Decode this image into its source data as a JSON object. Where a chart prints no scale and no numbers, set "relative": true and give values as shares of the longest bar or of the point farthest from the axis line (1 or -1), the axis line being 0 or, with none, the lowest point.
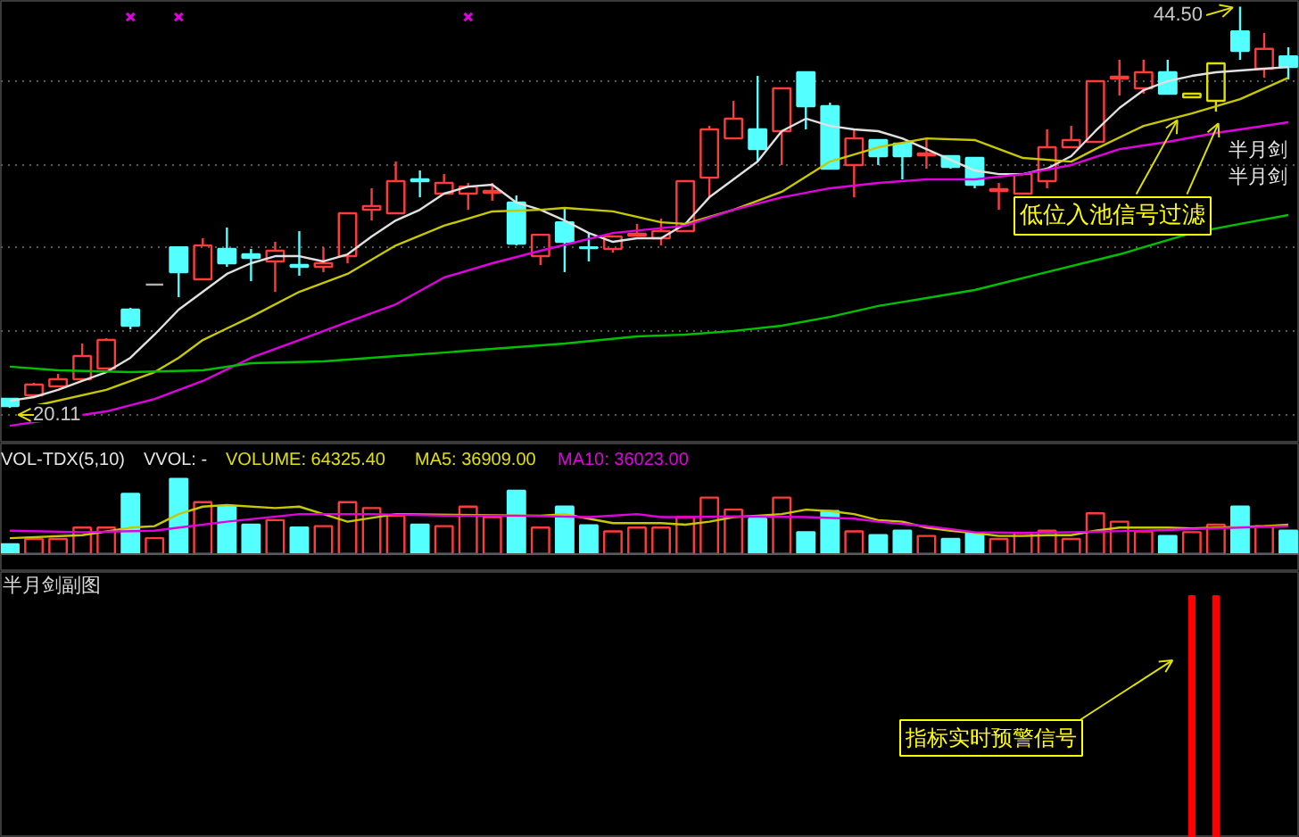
{
  "chart_data": [
    {
      "type": "candlestick",
      "categories": [
        null,
        null,
        null,
        null,
        null,
        null,
        null,
        null,
        null,
        null,
        null,
        null,
        null,
        null,
        null,
        null,
        null,
        null,
        null,
        null,
        null,
        null,
        null,
        null,
        null,
        null,
        null,
        null,
        null,
        null,
        null,
        null,
        null,
        null,
        null,
        null,
        null,
        null,
        null,
        null,
        null,
        null,
        null,
        null,
        null,
        null,
        null,
        null,
        null,
        null,
        null,
        null,
        null,
        null
      ],
      "ohlc": [
        [
          20.65,
          20.65,
          20.11,
          20.22
        ],
        [
          20.87,
          21.63,
          20.82,
          21.52
        ],
        [
          21.41,
          22.17,
          21.41,
          21.85
        ],
        [
          21.85,
          24.02,
          21.85,
          23.26
        ],
        [
          22.5,
          24.34,
          22.5,
          24.23
        ],
        [
          26.08,
          26.19,
          24.88,
          25.1
        ],
        [
          27.6,
          27.6,
          27.6,
          27.6
        ],
        [
          29.87,
          29.87,
          26.84,
          28.36
        ],
        [
          27.92,
          30.42,
          27.92,
          29.98
        ],
        [
          29.77,
          31.07,
          28.68,
          28.9
        ],
        [
          29.44,
          29.77,
          27.81,
          29.22
        ],
        [
          29.01,
          30.2,
          27.16,
          29.66
        ],
        [
          28.79,
          30.85,
          28.14,
          28.68
        ],
        [
          28.68,
          29.87,
          28.36,
          28.9
        ],
        [
          29.33,
          31.94,
          28.9,
          31.94
        ],
        [
          32.15,
          33.46,
          31.5,
          32.37
        ],
        [
          31.94,
          35.08,
          31.94,
          33.89
        ],
        [
          34.0,
          34.54,
          32.91,
          33.89
        ],
        [
          33.13,
          34.32,
          33.13,
          33.78
        ],
        [
          33.13,
          33.78,
          32.15,
          33.56
        ],
        [
          33.18,
          33.78,
          32.7,
          33.29
        ],
        [
          32.59,
          33.02,
          29.98,
          30.09
        ],
        [
          29.33,
          30.63,
          28.79,
          30.63
        ],
        [
          31.39,
          32.26,
          28.36,
          30.2
        ],
        [
          29.87,
          30.74,
          29.01,
          29.82
        ],
        [
          29.77,
          30.53,
          29.55,
          30.53
        ],
        [
          30.58,
          31.29,
          30.58,
          30.69
        ],
        [
          30.42,
          31.61,
          29.98,
          30.85
        ],
        [
          30.85,
          33.89,
          30.85,
          33.89
        ],
        [
          34.1,
          37.25,
          32.91,
          37.04
        ],
        [
          36.49,
          38.77,
          36.49,
          37.69
        ],
        [
          37.04,
          40.29,
          35.08,
          35.84
        ],
        [
          36.93,
          39.53,
          34.87,
          39.53
        ],
        [
          40.51,
          40.51,
          37.04,
          38.45
        ],
        [
          38.45,
          38.66,
          34.65,
          34.65
        ],
        [
          34.87,
          37.04,
          32.91,
          36.49
        ],
        [
          36.39,
          36.39,
          34.87,
          35.41
        ],
        [
          36.17,
          36.17,
          34.0,
          35.41
        ],
        [
          35.46,
          36.49,
          34.65,
          35.57
        ],
        [
          35.41,
          35.41,
          34.65,
          34.76
        ],
        [
          35.3,
          35.3,
          33.46,
          33.67
        ],
        [
          33.29,
          33.78,
          32.15,
          33.4
        ],
        [
          33.13,
          34.32,
          33.07,
          34.32
        ],
        [
          33.89,
          37.04,
          33.46,
          35.95
        ],
        [
          35.95,
          37.25,
          35.95,
          36.39
        ],
        [
          36.28,
          39.97,
          36.28,
          39.97
        ],
        [
          40.13,
          41.27,
          39.1,
          40.24
        ],
        [
          39.53,
          41.27,
          39.21,
          40.51
        ],
        [
          40.51,
          41.27,
          39.21,
          39.21
        ],
        [
          38.99,
          39.21,
          38.99,
          39.21
        ],
        [
          38.77,
          41.05,
          38.12,
          41.05
        ],
        [
          43.0,
          44.5,
          41.27,
          41.81
        ],
        [
          40.73,
          42.9,
          40.18,
          41.93
        ],
        [
          41.48,
          42.03,
          40.07,
          40.83
        ]
      ],
      "colors": [
        "#54ffff",
        "#ff3c3c",
        "#ff3c3c",
        "#ff3c3c",
        "#ff3c3c",
        "#54ffff",
        "#b0b0b0",
        "#54ffff",
        "#ff3c3c",
        "#54ffff",
        "#54ffff",
        "#ff3c3c",
        "#54ffff",
        "#ff3c3c",
        "#ff3c3c",
        "#ff3c3c",
        "#ff3c3c",
        "#54ffff",
        "#ff3c3c",
        "#ff3c3c",
        "#ff3c3c",
        "#54ffff",
        "#ff3c3c",
        "#54ffff",
        "#54ffff",
        "#ff3c3c",
        "#ff3c3c",
        "#ff3c3c",
        "#ff3c3c",
        "#ff3c3c",
        "#ff3c3c",
        "#54ffff",
        "#ff3c3c",
        "#54ffff",
        "#54ffff",
        "#ff3c3c",
        "#54ffff",
        "#54ffff",
        "#ff3c3c",
        "#54ffff",
        "#54ffff",
        "#ff3c3c",
        "#ff3c3c",
        "#ff3c3c",
        "#ff3c3c",
        "#ff3c3c",
        "#ff3c3c",
        "#ff3c3c",
        "#54ffff",
        "#e0e000",
        "#e0e000",
        "#54ffff",
        "#ff3c3c",
        "#54ffff"
      ],
      "series": [
        {
          "type": "line",
          "color": "#e0e0e0",
          "values": [
            20.54,
            20.76,
            21.2,
            21.74,
            22.28,
            23.15,
            24.56,
            26.08,
            27.16,
            28.25,
            28.9,
            29.33,
            29.33,
            29.01,
            29.44,
            30.53,
            31.5,
            32.15,
            33.13,
            33.56,
            33.67,
            32.59,
            32.15,
            31.5,
            30.74,
            30.2,
            30.42,
            30.42,
            31.29,
            32.91,
            34.0,
            35.08,
            36.93,
            37.69,
            37.25,
            37.04,
            36.93,
            36.49,
            35.84,
            35.19,
            34.54,
            34.32,
            34.32,
            34.65,
            35.41,
            36.93,
            38.34,
            39.42,
            39.97,
            40.29,
            40.51,
            40.62,
            40.73,
            40.83
          ]
        },
        {
          "type": "line",
          "color": "#c8c800",
          "values": [
            null,
            20.22,
            null,
            null,
            21.2,
            null,
            22.28,
            23.15,
            24.23,
            null,
            25.64,
            null,
            27.16,
            null,
            28.25,
            null,
            29.98,
            null,
            31.18,
            null,
            32.05,
            null,
            32.15,
            32.26,
            null,
            32.05,
            null,
            31.39,
            31.29,
            null,
            32.15,
            null,
            33.24,
            null,
            35.08,
            null,
            35.95,
            null,
            36.49,
            null,
            36.39,
            null,
            35.3,
            null,
            35.08,
            35.84,
            null,
            37.25,
            null,
            38.01,
            null,
            38.88,
            null,
            40.18
          ]
        },
        {
          "type": "line",
          "color": "#e000e0",
          "values": [
            19.02,
            null,
            null,
            null,
            19.89,
            null,
            20.65,
            null,
            21.74,
            null,
            23.15,
            null,
            24.23,
            null,
            25.32,
            null,
            26.4,
            null,
            28.03,
            null,
            28.9,
            null,
            29.66,
            null,
            null,
            30.74,
            null,
            null,
            31.18,
            null,
            32.15,
            null,
            32.91,
            null,
            33.46,
            null,
            33.78,
            null,
            34.0,
            null,
            34.0,
            null,
            34.32,
            null,
            34.87,
            null,
            35.84,
            null,
            36.28,
            null,
            36.82,
            null,
            null,
            37.47
          ]
        },
        {
          "type": "line",
          "color": "#00c000",
          "values": [
            22.61,
            null,
            22.39,
            null,
            null,
            22.28,
            null,
            null,
            22.39,
            null,
            22.82,
            null,
            null,
            22.93,
            null,
            null,
            23.26,
            null,
            23.47,
            null,
            23.69,
            null,
            null,
            24.02,
            null,
            null,
            24.45,
            null,
            24.56,
            null,
            24.78,
            null,
            25.1,
            null,
            25.64,
            null,
            26.3,
            null,
            null,
            null,
            27.27,
            null,
            null,
            28.36,
            null,
            null,
            29.44,
            null,
            null,
            30.74,
            null,
            31.29,
            null,
            31.83
          ]
        },
        {
          "type": "scatter",
          "marker": "cross",
          "color": "#e000e0",
          "values": [
            null,
            null,
            null,
            null,
            null,
            43.87,
            null,
            43.87,
            null,
            null,
            null,
            null,
            null,
            null,
            null,
            null,
            null,
            null,
            null,
            43.87,
            null,
            null,
            null,
            null,
            null,
            null,
            null,
            null,
            null,
            null,
            null,
            null,
            null,
            null,
            null,
            null,
            null,
            null,
            null,
            null,
            null,
            null,
            null,
            null,
            null,
            null,
            null,
            null,
            null,
            null,
            null,
            null,
            null,
            null
          ]
        }
      ],
      "ylim": [
        17.94,
        44.85
      ],
      "yticks": [
        {
          "value": 39.97,
          "label": null
        },
        {
          "value": 34.87,
          "label": null
        },
        {
          "value": 29.87,
          "label": null
        },
        {
          "value": 24.78,
          "label": null
        },
        {
          "value": 19.68,
          "label": null
        }
      ],
      "grid": "y",
      "tick_labels": false,
      "annotations": [
        "44.50",
        "20.11",
        "半月剑",
        "半月剑",
        "低位入池信号过滤"
      ]
    },
    {
      "type": "line",
      "relative": true,
      "categories": [
        null,
        null,
        null,
        null,
        null,
        null,
        null,
        null,
        null,
        null,
        null,
        null,
        null,
        null,
        null,
        null,
        null,
        null,
        null,
        null,
        null,
        null,
        null,
        null,
        null,
        null,
        null,
        null,
        null,
        null,
        null,
        null,
        null,
        null,
        null,
        null,
        null,
        null,
        null,
        null,
        null,
        null,
        null,
        null,
        null,
        null,
        null,
        null,
        null,
        null,
        null,
        null,
        null,
        null
      ],
      "series": [
        {
          "type": "bar",
          "colors": [
            "#54ffff",
            "#ff3c3c",
            "#ff3c3c",
            "#ff3c3c",
            "#ff3c3c",
            "#54ffff",
            "#ff3c3c",
            "#54ffff",
            "#ff3c3c",
            "#54ffff",
            "#54ffff",
            "#ff3c3c",
            "#54ffff",
            "#ff3c3c",
            "#ff3c3c",
            "#ff3c3c",
            "#ff3c3c",
            "#54ffff",
            "#ff3c3c",
            "#ff3c3c",
            "#ff3c3c",
            "#54ffff",
            "#ff3c3c",
            "#54ffff",
            "#54ffff",
            "#ff3c3c",
            "#ff3c3c",
            "#ff3c3c",
            "#ff3c3c",
            "#ff3c3c",
            "#ff3c3c",
            "#54ffff",
            "#ff3c3c",
            "#54ffff",
            "#54ffff",
            "#ff3c3c",
            "#54ffff",
            "#54ffff",
            "#ff3c3c",
            "#54ffff",
            "#54ffff",
            "#ff3c3c",
            "#ff3c3c",
            "#ff3c3c",
            "#ff3c3c",
            "#ff3c3c",
            "#ff3c3c",
            "#ff3c3c",
            "#54ffff",
            "#ff3c3c",
            "#ff3c3c",
            "#54ffff",
            "#ff3c3c",
            "#54ffff"
          ],
          "values": [
            0.13,
            0.2,
            0.2,
            0.35,
            0.35,
            0.8,
            0.21,
            1,
            0.69,
            0.63,
            0.39,
            0.45,
            0.35,
            0.37,
            0.69,
            0.61,
            0.51,
            0.39,
            0.37,
            0.63,
            0.49,
            0.84,
            0.35,
            0.63,
            0.38,
            0.3,
            0.35,
            0.35,
            0.49,
            0.75,
            0.59,
            0.47,
            0.75,
            0.29,
            0.57,
            0.3,
            0.25,
            0.31,
            0.24,
            0.2,
            0.28,
            0.2,
            0.28,
            0.31,
            0.2,
            0.54,
            0.43,
            0.3,
            0.24,
            0.29,
            0.39,
            0.63,
            0.37,
            0.31
          ]
        },
        {
          "type": "line",
          "color": "#c8c800",
          "values": [
            0.21,
            null,
            null,
            0.25,
            null,
            0.35,
            0.37,
            0.53,
            0.63,
            0.65,
            null,
            0.61,
            0.63,
            0.53,
            0.43,
            null,
            0.53,
            null,
            null,
            null,
            null,
            null,
            0.51,
            0.53,
            0.47,
            0.41,
            0.41,
            0.41,
            0.39,
            0.43,
            0.49,
            0.51,
            0.53,
            0.59,
            0.57,
            0.53,
            0.45,
            0.43,
            0.35,
            0.31,
            0.28,
            0.24,
            0.24,
            0.25,
            0.25,
            0.31,
            0.35,
            0.35,
            0.35,
            0.34,
            0.35,
            null,
            0.37,
            0.39
          ]
        },
        {
          "type": "line",
          "color": "#e000e0",
          "values": [
            0.31,
            null,
            null,
            0.29,
            null,
            null,
            0.31,
            0.35,
            null,
            0.43,
            null,
            null,
            0.53,
            null,
            null,
            0.53,
            null,
            null,
            0.51,
            null,
            null,
            0.51,
            null,
            null,
            0.49,
            null,
            0.53,
            0.49,
            0.49,
            null,
            0.5,
            null,
            null,
            0.49,
            null,
            0.47,
            0.43,
            null,
            0.37,
            null,
            0.29,
            null,
            0.28,
            null,
            0.29,
            null,
            null,
            0.31,
            null,
            null,
            0.34,
            null,
            null,
            0.37
          ]
        }
      ],
      "tick_labels": false,
      "annotations": [
        "VOL-TDX(5,10)",
        "VVOL: -",
        "VOLUME: 64325.40",
        "MA5: 36909.00",
        "MA10: 36023.00"
      ]
    },
    {
      "type": "bar",
      "relative": true,
      "title": "半月剑副图",
      "categories": [
        null,
        null,
        null,
        null,
        null,
        null,
        null,
        null,
        null,
        null,
        null,
        null,
        null,
        null,
        null,
        null,
        null,
        null,
        null,
        null,
        null,
        null,
        null,
        null,
        null,
        null,
        null,
        null,
        null,
        null,
        null,
        null,
        null,
        null,
        null,
        null,
        null,
        null,
        null,
        null,
        null,
        null,
        null,
        null,
        null,
        null,
        null,
        null,
        null,
        null,
        null,
        null,
        null,
        null
      ],
      "color": "#ff0000",
      "values": [
        null,
        null,
        null,
        null,
        null,
        null,
        null,
        null,
        null,
        null,
        null,
        null,
        null,
        null,
        null,
        null,
        null,
        null,
        null,
        null,
        null,
        null,
        null,
        null,
        null,
        null,
        null,
        null,
        null,
        null,
        null,
        null,
        null,
        null,
        null,
        null,
        null,
        null,
        null,
        null,
        null,
        null,
        null,
        null,
        null,
        null,
        null,
        null,
        null,
        1,
        1,
        null,
        null,
        null
      ],
      "tick_labels": false,
      "annotations": [
        "指标实时预警信号"
      ]
    }
  ]
}
